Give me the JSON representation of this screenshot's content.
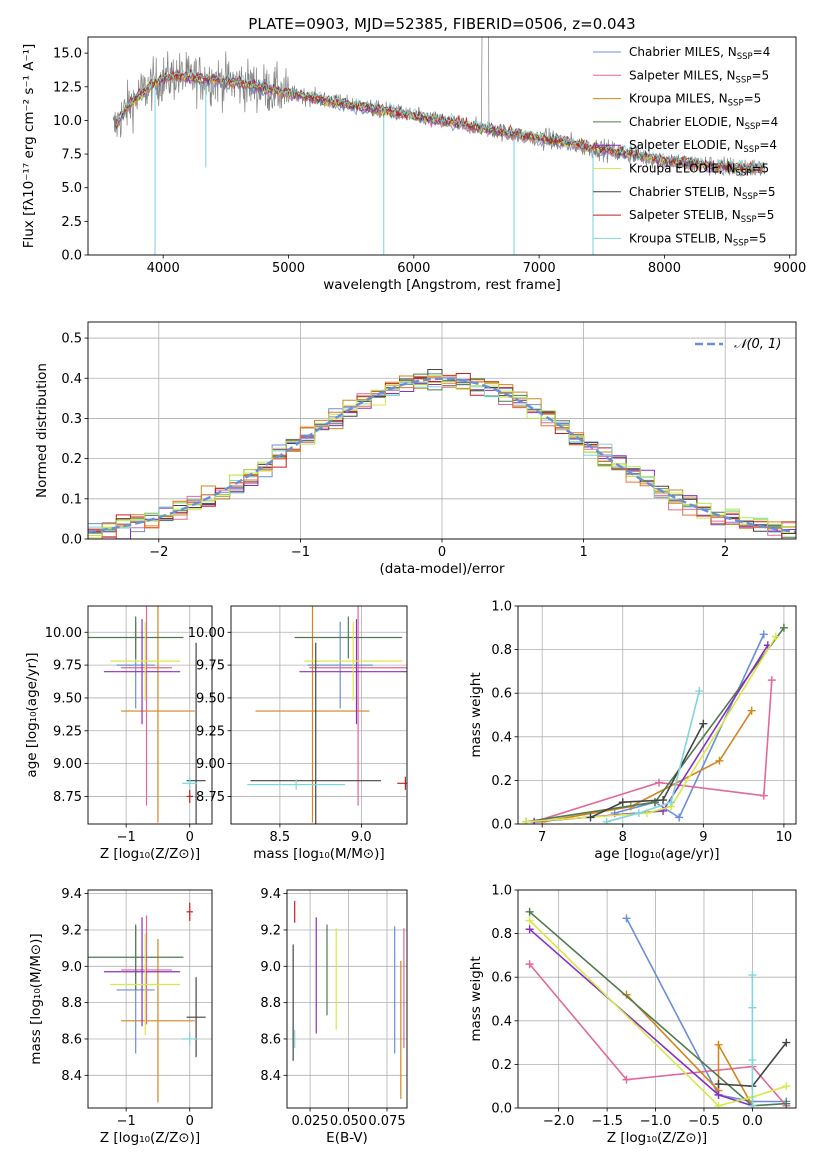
{
  "colors": {
    "C0": "#6a8fd8",
    "C1": "#e0699b",
    "C2": "#d2861e",
    "C3": "#4f7a4f",
    "C4": "#8b2fc0",
    "C5": "#d8e84a",
    "C6": "#444444",
    "C7": "#c81e1e",
    "C8": "#7fd8d8",
    "data": "#808080",
    "C9": "#e8732a",
    "C10": "#b0e84a",
    "normal": "#6a8fd8"
  },
  "chart_data": [
    {
      "id": "spectrum",
      "type": "line",
      "title": "PLATE=0903, MJD=52385, FIBERID=0506, z=0.043",
      "xlabel": "wavelength [Angstrom, rest frame]",
      "ylabel": "Flux [fλ10⁻¹⁷ erg cm⁻² s⁻¹ A⁻¹]",
      "xlim": [
        3400,
        9050
      ],
      "ylim": [
        0,
        16.2
      ],
      "xticks": [
        4000,
        5000,
        6000,
        7000,
        8000,
        9000
      ],
      "xtick_labels": [
        "4000",
        "5000",
        "6000",
        "7000",
        "8000",
        "9000"
      ],
      "yticks": [
        0,
        2.5,
        5,
        7.5,
        10,
        12.5,
        15
      ],
      "ytick_labels": [
        "0.0",
        "2.5",
        "5.0",
        "7.5",
        "10.0",
        "12.5",
        "15.0"
      ],
      "grid": false,
      "legend_position": "top-right",
      "continuum": {
        "x": [
          3600,
          3700,
          3800,
          3900,
          4000,
          4100,
          4200,
          4400,
          4600,
          4800,
          5000,
          5200,
          5400,
          5600,
          5800,
          6000,
          6200,
          6400,
          6600,
          6800,
          7000,
          7200,
          7400,
          7600,
          7800,
          8000,
          8200,
          8400,
          8600,
          8800
        ],
        "y": [
          9.3,
          10.8,
          11.8,
          12.6,
          13.1,
          13.3,
          13.2,
          13.0,
          12.8,
          12.4,
          12.0,
          11.7,
          11.3,
          11.0,
          10.7,
          10.3,
          10.0,
          9.7,
          9.3,
          9.0,
          8.7,
          8.4,
          8.0,
          7.7,
          7.4,
          7.0,
          6.8,
          6.6,
          6.5,
          6.4
        ]
      },
      "absorption_lines": [
        {
          "x": 3935,
          "y": 0.0
        },
        {
          "x": 4340,
          "y": 6.5
        },
        {
          "x": 5760,
          "y": 0.0
        },
        {
          "x": 6800,
          "y": 0.0
        },
        {
          "x": 7430,
          "y": 0.0
        }
      ],
      "series": [
        {
          "name": "Chabrier MILES, N",
          "suffix": "=4",
          "color": "C0"
        },
        {
          "name": "Salpeter MILES, N",
          "suffix": "=5",
          "color": "C1"
        },
        {
          "name": "Kroupa MILES, N",
          "suffix": "=5",
          "color": "C2"
        },
        {
          "name": "Chabrier ELODIE, N",
          "suffix": "=4",
          "color": "C3"
        },
        {
          "name": "Salpeter ELODIE, N",
          "suffix": "=4",
          "color": "C4"
        },
        {
          "name": "Kroupa ELODIE, N",
          "suffix": "=5",
          "color": "C5"
        },
        {
          "name": "Chabrier STELIB, N",
          "suffix": "=5",
          "color": "C6"
        },
        {
          "name": "Salpeter STELIB, N",
          "suffix": "=5",
          "color": "C7"
        },
        {
          "name": "Kroupa STELIB, N",
          "suffix": "=5",
          "color": "C8"
        }
      ],
      "legend_subscript": "SSP"
    },
    {
      "id": "residuals",
      "type": "line",
      "xlabel": "(data-model)/error",
      "ylabel": "Normed distribution",
      "xlim": [
        -2.5,
        2.5
      ],
      "ylim": [
        0,
        0.54
      ],
      "xticks": [
        -2,
        -1,
        0,
        1,
        2
      ],
      "xtick_labels": [
        "−2",
        "−1",
        "0",
        "1",
        "2"
      ],
      "yticks": [
        0,
        0.1,
        0.2,
        0.3,
        0.4,
        0.5
      ],
      "ytick_labels": [
        "0.0",
        "0.1",
        "0.2",
        "0.3",
        "0.4",
        "0.5"
      ],
      "grid": true,
      "legend_position": "top-right",
      "legend": [
        {
          "label": "𝒩(0, 1)",
          "color": "normal",
          "style": "dashed"
        }
      ],
      "bin_width": 0.1,
      "histogram_colors": [
        "C0",
        "C1",
        "C2",
        "C3",
        "C4",
        "C5",
        "C6",
        "C7",
        "C8",
        "C9",
        "C10"
      ]
    },
    {
      "id": "age-vs-Z",
      "type": "scatter",
      "xlabel": "Z [log₁₀(Z/Z⊙)]",
      "ylabel": "age  [log₁₀(age/yr)]",
      "xlim": [
        -1.6,
        0.35
      ],
      "ylim": [
        8.54,
        10.2
      ],
      "xticks": [
        -1,
        0
      ],
      "xtick_labels": [
        "−1",
        "0"
      ],
      "yticks": [
        8.75,
        9.0,
        9.25,
        9.5,
        9.75,
        10.0
      ],
      "ytick_labels": [
        "8.75",
        "9.00",
        "9.25",
        "9.50",
        "9.75",
        "10.00"
      ],
      "grid": true,
      "points": [
        {
          "color": "C0",
          "x": -0.85,
          "xerr": 0.3,
          "y": 9.75,
          "yerr": 0.33
        },
        {
          "color": "C1",
          "x": -0.68,
          "xerr": 0.4,
          "y": 9.73,
          "yerr": 1.05
        },
        {
          "color": "C2",
          "x": -0.5,
          "xerr": 0.58,
          "y": 9.4,
          "yerr": 0.85
        },
        {
          "color": "C3",
          "x": -0.85,
          "xerr": 0.75,
          "y": 9.96,
          "yerr": 0.16
        },
        {
          "color": "C4",
          "x": -0.75,
          "xerr": 0.6,
          "y": 9.7,
          "yerr": 0.4
        },
        {
          "color": "C5",
          "x": -0.7,
          "xerr": 0.55,
          "y": 9.78,
          "yerr": 0.3
        },
        {
          "color": "C6",
          "x": 0.1,
          "xerr": 0.15,
          "y": 8.87,
          "yerr": 1.05
        },
        {
          "color": "C7",
          "x": 0.0,
          "xerr": 0.05,
          "y": 8.75,
          "yerr": 0.05
        },
        {
          "color": "C8",
          "x": 0.0,
          "xerr": 0.12,
          "y": 8.85,
          "yerr": 0.05
        }
      ]
    },
    {
      "id": "age-vs-mass",
      "type": "scatter",
      "xlabel": "mass [log₁₀(M/M⊙)]",
      "ylabel": "",
      "xlim": [
        8.2,
        9.28
      ],
      "ylim": [
        8.54,
        10.2
      ],
      "xticks": [
        8.5,
        9.0
      ],
      "xtick_labels": [
        "8.5",
        "9.0"
      ],
      "yticks": [
        8.75,
        9.0,
        9.25,
        9.5,
        9.75,
        10.0
      ],
      "ytick_labels": [
        "8.75",
        "9.00",
        "9.25",
        "9.50",
        "9.75",
        "10.00"
      ],
      "grid": true,
      "points": [
        {
          "color": "C0",
          "x": 8.87,
          "xerr": 0.2,
          "y": 9.75,
          "yerr": 0.33
        },
        {
          "color": "C1",
          "x": 8.98,
          "xerr": 0.3,
          "y": 9.73,
          "yerr": 1.05
        },
        {
          "color": "C2",
          "x": 8.7,
          "xerr": 0.35,
          "y": 9.4,
          "yerr": 0.85
        },
        {
          "color": "C3",
          "x": 8.92,
          "xerr": 0.33,
          "y": 9.96,
          "yerr": 0.16
        },
        {
          "color": "C4",
          "x": 8.97,
          "xerr": 0.35,
          "y": 9.7,
          "yerr": 0.4
        },
        {
          "color": "C5",
          "x": 8.95,
          "xerr": 0.3,
          "y": 9.78,
          "yerr": 0.3
        },
        {
          "color": "C6",
          "x": 8.72,
          "xerr": 0.4,
          "y": 8.87,
          "yerr": 1.05
        },
        {
          "color": "C7",
          "x": 9.27,
          "xerr": 0.05,
          "y": 8.85,
          "yerr": 0.05
        },
        {
          "color": "C8",
          "x": 8.6,
          "xerr": 0.3,
          "y": 8.84,
          "yerr": 0.04
        }
      ]
    },
    {
      "id": "weight-vs-age",
      "type": "line",
      "xlabel": "age  [log₁₀(age/yr)]",
      "ylabel": "mass weight",
      "xlim": [
        6.7,
        10.15
      ],
      "ylim": [
        0,
        1.0
      ],
      "xticks": [
        7,
        8,
        9,
        10
      ],
      "xtick_labels": [
        "7",
        "8",
        "9",
        "10"
      ],
      "yticks": [
        0,
        0.2,
        0.4,
        0.6,
        0.8,
        1.0
      ],
      "ytick_labels": [
        "0.0",
        "0.2",
        "0.4",
        "0.6",
        "0.8",
        "1.0"
      ],
      "grid": true,
      "series": [
        {
          "color": "C0",
          "x": [
            7.9,
            8.4,
            8.7,
            9.75
          ],
          "y": [
            0.05,
            0.1,
            0.03,
            0.87
          ]
        },
        {
          "color": "C1",
          "x": [
            6.9,
            8.45,
            9.75,
            9.85
          ],
          "y": [
            0.01,
            0.19,
            0.13,
            0.66
          ]
        },
        {
          "color": "C2",
          "x": [
            7.0,
            8.1,
            9.2,
            9.6
          ],
          "y": [
            0.01,
            0.08,
            0.29,
            0.52
          ]
        },
        {
          "color": "C3",
          "x": [
            6.8,
            8.4,
            10.0
          ],
          "y": [
            0.01,
            0.1,
            0.9
          ]
        },
        {
          "color": "C4",
          "x": [
            6.9,
            8.5,
            9.8
          ],
          "y": [
            0.01,
            0.06,
            0.82
          ]
        },
        {
          "color": "C5",
          "x": [
            6.8,
            8.3,
            8.6,
            9.9
          ],
          "y": [
            0.01,
            0.05,
            0.08,
            0.86
          ]
        },
        {
          "color": "C6",
          "x": [
            7.6,
            8.0,
            8.5,
            9.0
          ],
          "y": [
            0.03,
            0.1,
            0.11,
            0.46
          ]
        },
        {
          "color": "C8",
          "x": [
            7.8,
            8.2,
            8.6,
            8.95
          ],
          "y": [
            0.01,
            0.05,
            0.1,
            0.61
          ]
        }
      ]
    },
    {
      "id": "mass-vs-Z",
      "type": "scatter",
      "xlabel": "Z [log₁₀(Z/Z⊙)]",
      "ylabel": "mass [log₁₀(M/M⊙)]",
      "xlim": [
        -1.6,
        0.35
      ],
      "ylim": [
        8.22,
        9.42
      ],
      "xticks": [
        -1,
        0
      ],
      "xtick_labels": [
        "−1",
        "0"
      ],
      "yticks": [
        8.4,
        8.6,
        8.8,
        9.0,
        9.2,
        9.4
      ],
      "ytick_labels": [
        "8.4",
        "8.6",
        "8.8",
        "9.0",
        "9.2",
        "9.4"
      ],
      "grid": true,
      "points": [
        {
          "color": "C0",
          "x": -0.85,
          "xerr": 0.3,
          "y": 8.87,
          "yerr": 0.35
        },
        {
          "color": "C1",
          "x": -0.68,
          "xerr": 0.4,
          "y": 8.98,
          "yerr": 0.3
        },
        {
          "color": "C2",
          "x": -0.5,
          "xerr": 0.58,
          "y": 8.7,
          "yerr": 0.45
        },
        {
          "color": "C3",
          "x": -0.85,
          "xerr": 0.75,
          "y": 9.05,
          "yerr": 0.18
        },
        {
          "color": "C4",
          "x": -0.75,
          "xerr": 0.6,
          "y": 8.97,
          "yerr": 0.3
        },
        {
          "color": "C5",
          "x": -0.7,
          "xerr": 0.55,
          "y": 8.9,
          "yerr": 0.28
        },
        {
          "color": "C6",
          "x": 0.1,
          "xerr": 0.15,
          "y": 8.72,
          "yerr": 0.22
        },
        {
          "color": "C7",
          "x": 0.0,
          "xerr": 0.05,
          "y": 9.3,
          "yerr": 0.05
        },
        {
          "color": "C8",
          "x": 0.0,
          "xerr": 0.12,
          "y": 8.6,
          "yerr": 0.04
        }
      ]
    },
    {
      "id": "mass-vs-EBV",
      "type": "scatter",
      "xlabel": "E(B-V)",
      "ylabel": "",
      "xlim": [
        0.01,
        0.088
      ],
      "ylim": [
        8.22,
        9.42
      ],
      "xticks": [
        0.025,
        0.05,
        0.075
      ],
      "xtick_labels": [
        "0.025",
        "0.050",
        "0.075"
      ],
      "yticks": [
        8.4,
        8.6,
        8.8,
        9.0,
        9.2,
        9.4
      ],
      "ytick_labels": [
        "8.4",
        "8.6",
        "8.8",
        "9.0",
        "9.2",
        "9.4"
      ],
      "grid": true,
      "points": [
        {
          "color": "C0",
          "x": 0.08,
          "xerr": 0.0,
          "y": 8.87,
          "yerr": 0.35
        },
        {
          "color": "C1",
          "x": 0.086,
          "xerr": 0.0,
          "y": 8.88,
          "yerr": 0.33
        },
        {
          "color": "C2",
          "x": 0.084,
          "xerr": 0.0,
          "y": 8.65,
          "yerr": 0.38
        },
        {
          "color": "C3",
          "x": 0.036,
          "xerr": 0.0,
          "y": 8.98,
          "yerr": 0.25
        },
        {
          "color": "C4",
          "x": 0.029,
          "xerr": 0.0,
          "y": 8.95,
          "yerr": 0.32
        },
        {
          "color": "C5",
          "x": 0.042,
          "xerr": 0.0,
          "y": 8.93,
          "yerr": 0.28
        },
        {
          "color": "C6",
          "x": 0.014,
          "xerr": 0.0,
          "y": 8.8,
          "yerr": 0.32
        },
        {
          "color": "C7",
          "x": 0.015,
          "xerr": 0.0,
          "y": 9.3,
          "yerr": 0.06
        },
        {
          "color": "C8",
          "x": 0.015,
          "xerr": 0.0,
          "y": 8.6,
          "yerr": 0.05
        }
      ]
    },
    {
      "id": "weight-vs-Z",
      "type": "line",
      "xlabel": "Z [log₁₀(Z/Z⊙)]",
      "ylabel": "mass weight",
      "xlim": [
        -2.42,
        0.45
      ],
      "ylim": [
        0,
        1.0
      ],
      "xticks": [
        -2.0,
        -1.5,
        -1.0,
        -0.5,
        0.0
      ],
      "xtick_labels": [
        "−2.0",
        "−1.5",
        "−1.0",
        "−0.5",
        "0.0"
      ],
      "yticks": [
        0,
        0.2,
        0.4,
        0.6,
        0.8,
        1.0
      ],
      "ytick_labels": [
        "0.0",
        "0.2",
        "0.4",
        "0.6",
        "0.8",
        "1.0"
      ],
      "grid": true,
      "series": [
        {
          "color": "C0",
          "x": [
            -1.3,
            -0.35,
            0.0,
            0.35
          ],
          "y": [
            0.87,
            0.06,
            0.03,
            0.03
          ]
        },
        {
          "color": "C1",
          "x": [
            -2.3,
            -1.3,
            0.0,
            0.35
          ],
          "y": [
            0.66,
            0.13,
            0.19,
            0.01
          ]
        },
        {
          "color": "C2",
          "x": [
            -1.3,
            -0.35,
            -0.35,
            0.0
          ],
          "y": [
            0.52,
            0.08,
            0.29,
            0.01
          ]
        },
        {
          "color": "C3",
          "x": [
            -2.3,
            0.0,
            0.35
          ],
          "y": [
            0.9,
            0.01,
            0.02
          ]
        },
        {
          "color": "C4",
          "x": [
            -2.3,
            -0.35,
            0.0
          ],
          "y": [
            0.82,
            0.06,
            0.01
          ]
        },
        {
          "color": "C5",
          "x": [
            -2.3,
            -0.35,
            0.0,
            0.35
          ],
          "y": [
            0.86,
            0.01,
            0.05,
            0.1
          ]
        },
        {
          "color": "C6",
          "x": [
            -0.35,
            0.0,
            0.35
          ],
          "y": [
            0.11,
            0.1,
            0.3
          ]
        },
        {
          "color": "C8",
          "x": [
            0.0,
            0.0,
            0.0,
            0.0
          ],
          "y": [
            0.01,
            0.61,
            0.46,
            0.22
          ]
        }
      ]
    }
  ]
}
